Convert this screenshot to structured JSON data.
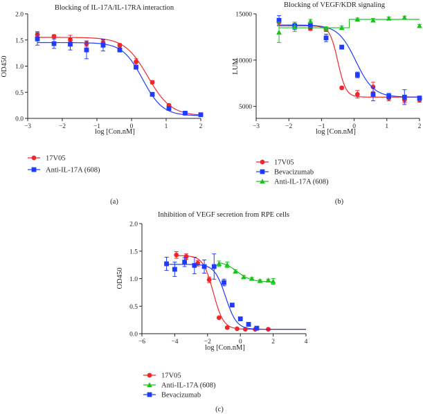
{
  "chart_data": [
    {
      "id": "a",
      "type": "scatter",
      "panel_label": "(a)",
      "title": "Blocking of IL-17A/IL-17RA interaction",
      "xlabel": "log [Con.nM]",
      "ylabel": "OD450",
      "xlim": [
        -3,
        2
      ],
      "ylim": [
        0,
        2.0
      ],
      "xticks": [
        "-3",
        "-2",
        "-1",
        "0",
        "1",
        "2"
      ],
      "yticks": [
        "0.0",
        "0.5",
        "1.0",
        "1.5",
        "2.0"
      ],
      "series": [
        {
          "name": "17V05",
          "color": "#f0262b",
          "marker": "circle",
          "x": [
            -2.72,
            -2.24,
            -1.77,
            -1.3,
            -0.82,
            -0.34,
            0.13,
            0.6,
            1.08,
            1.55,
            2.0
          ],
          "y": [
            1.6,
            1.57,
            1.5,
            1.43,
            1.45,
            1.4,
            1.08,
            0.69,
            0.25,
            0.1,
            0.07
          ],
          "err": [
            0.06,
            0.03,
            0.09,
            0.05,
            0.05,
            0.03,
            0.06,
            0.03,
            0.02,
            0.02,
            0.02
          ],
          "fit": {
            "top": 1.55,
            "bottom": 0.05,
            "logec50": 0.47,
            "hill": 1.3
          }
        },
        {
          "name": "Anti-IL-17A (608)",
          "color": "#1f3bff",
          "marker": "square",
          "x": [
            -2.72,
            -2.24,
            -1.77,
            -1.3,
            -0.82,
            -0.34,
            0.13,
            0.6,
            1.08,
            1.55,
            2.0
          ],
          "y": [
            1.52,
            1.43,
            1.42,
            1.31,
            1.4,
            1.31,
            0.98,
            0.46,
            0.19,
            0.1,
            0.07
          ],
          "err": [
            0.12,
            0.09,
            0.11,
            0.17,
            0.11,
            0.04,
            0.04,
            0.03,
            0.02,
            0.01,
            0.01
          ],
          "fit": {
            "top": 1.45,
            "bottom": 0.05,
            "logec50": 0.32,
            "hill": 1.5
          }
        }
      ]
    },
    {
      "id": "b",
      "type": "scatter",
      "panel_label": "(b)",
      "title": "Blocking of VEGF/KDR signaling",
      "xlabel": "log [Con.nM]",
      "ylabel": "LUM",
      "xlim": [
        -3,
        2
      ],
      "ylim": [
        3700,
        15000
      ],
      "xticks": [
        "-3",
        "-2",
        "-1",
        "0",
        "1",
        "2"
      ],
      "yticks": [
        "5000",
        "10000",
        "15000"
      ],
      "ytick_values": [
        5000,
        10000,
        15000
      ],
      "series": [
        {
          "name": "17V05",
          "color": "#f0262b",
          "marker": "circle",
          "x": [
            -2.3,
            -1.82,
            -1.34,
            -0.86,
            -0.38,
            0.1,
            0.58,
            1.06,
            1.54,
            2.0
          ],
          "y": [
            14100,
            13800,
            13400,
            13300,
            7000,
            6300,
            7100,
            5900,
            5700,
            5700
          ],
          "err": [
            400,
            300,
            200,
            200,
            150,
            400,
            500,
            300,
            300,
            250
          ],
          "fit": {
            "top": 13700,
            "bottom": 6000,
            "logec50": -0.5,
            "hill": 3.5
          }
        },
        {
          "name": "Bevacizumab",
          "color": "#1f3bff",
          "marker": "square",
          "x": [
            -2.3,
            -1.82,
            -1.34,
            -0.86,
            -0.38,
            0.1,
            0.58,
            1.06,
            1.54,
            2.0
          ],
          "y": [
            14300,
            13700,
            13700,
            12400,
            11400,
            8400,
            6300,
            6100,
            6000,
            5900
          ],
          "err": [
            500,
            400,
            300,
            400,
            200,
            300,
            700,
            300,
            800,
            200
          ],
          "fit": {
            "top": 13800,
            "bottom": 6000,
            "logec50": 0.05,
            "hill": 1.6
          }
        },
        {
          "name": "Anti-IL-17A (608)",
          "color": "#18c41b",
          "marker": "triangle",
          "x": [
            -2.3,
            -1.82,
            -1.34,
            -0.86,
            -0.38,
            0.1,
            0.58,
            1.06,
            1.54,
            2.0
          ],
          "y": [
            13000,
            13600,
            14200,
            13400,
            13500,
            14400,
            14300,
            14500,
            14600,
            13700
          ],
          "err": [
            1100,
            500,
            200,
            200,
            200,
            150,
            200,
            150,
            150,
            150
          ],
          "fit_step": {
            "low": 13500,
            "high": 14400,
            "x_switch": -0.15
          }
        }
      ]
    },
    {
      "id": "c",
      "type": "scatter",
      "panel_label": "(c)",
      "title": "Inhibition of VEGF secretion from RPE cells",
      "xlabel": "log [Con.nM]",
      "ylabel": "OD450",
      "xlim": [
        -6,
        4
      ],
      "ylim": [
        0,
        2.0
      ],
      "xticks": [
        "-6",
        "-4",
        "-2",
        "0",
        "2",
        "4"
      ],
      "yticks": [
        "0.0",
        "0.5",
        "1.0",
        "1.5",
        "2.0"
      ],
      "series": [
        {
          "name": "17V05",
          "color": "#f0262b",
          "marker": "circle",
          "x": [
            -3.9,
            -3.3,
            -2.6,
            -1.9,
            -1.3,
            -0.8,
            -0.2,
            0.3,
            0.9,
            1.7
          ],
          "y": [
            1.43,
            1.4,
            1.28,
            0.98,
            0.29,
            0.11,
            0.09,
            0.08,
            0.08,
            0.08
          ],
          "err": [
            0.06,
            0.05,
            0.05,
            0.05,
            0.02,
            0.02,
            0.01,
            0.01,
            0.01,
            0.01
          ],
          "fit": {
            "top": 1.42,
            "bottom": 0.08,
            "logec50": -1.65,
            "hill": 1.4
          }
        },
        {
          "name": "Anti-IL-17A (608)",
          "color": "#18c41b",
          "marker": "triangle",
          "x": [
            -1.3,
            -0.8,
            -0.3,
            0.2,
            0.7,
            1.2,
            1.7,
            2.0
          ],
          "y": [
            1.27,
            1.25,
            1.13,
            1.03,
            1.0,
            0.96,
            0.97,
            0.95
          ],
          "err": [
            0.05,
            0.05,
            0.03,
            0.03,
            0.02,
            0.02,
            0.02,
            0.05
          ],
          "fit": {
            "top": 1.32,
            "bottom": 0.94,
            "logec50": -0.2,
            "hill": 1.0,
            "x_start": -1.35,
            "x_end": 2.0
          }
        },
        {
          "name": "Bevacizumab",
          "color": "#1f3bff",
          "marker": "square",
          "x": [
            -4.5,
            -4.0,
            -3.4,
            -2.8,
            -2.2,
            -1.6,
            -1.0,
            -0.5,
            0.0,
            0.5,
            1.0
          ],
          "y": [
            1.27,
            1.17,
            1.3,
            1.24,
            1.22,
            1.22,
            0.93,
            0.52,
            0.27,
            0.17,
            0.1
          ],
          "err": [
            0.12,
            0.13,
            0.08,
            0.15,
            0.12,
            0.23,
            0.06,
            0.03,
            0.02,
            0.02,
            0.02
          ],
          "fit": {
            "top": 1.26,
            "bottom": 0.08,
            "logec50": -0.9,
            "hill": 1.3
          }
        }
      ]
    }
  ]
}
